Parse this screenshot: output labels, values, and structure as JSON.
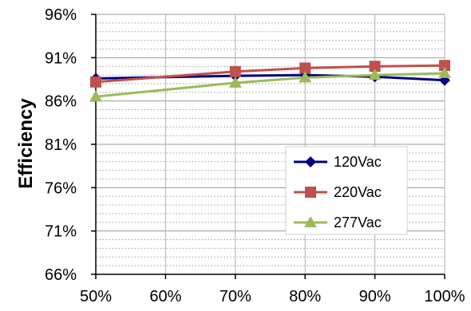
{
  "chart_data": {
    "type": "line",
    "title": "",
    "xlabel": "",
    "ylabel": "Efficiency",
    "x": [
      "50%",
      "60%",
      "70%",
      "80%",
      "90%",
      "100%"
    ],
    "y_ticks": [
      "96%",
      "91%",
      "86%",
      "81%",
      "76%",
      "71%",
      "66%"
    ],
    "ylim": [
      66,
      96
    ],
    "grid": true,
    "legend": "center-right",
    "series": [
      {
        "name": "120Vac",
        "color": "#000080",
        "marker": "diamond",
        "points": [
          [
            50,
            88.6
          ],
          [
            70,
            88.9
          ],
          [
            80,
            89.0
          ],
          [
            90,
            88.8
          ],
          [
            100,
            88.4
          ]
        ]
      },
      {
        "name": "220Vac",
        "color": "#c0504d",
        "marker": "square",
        "points": [
          [
            50,
            88.2
          ],
          [
            70,
            89.4
          ],
          [
            80,
            89.8
          ],
          [
            90,
            90.0
          ],
          [
            100,
            90.1
          ]
        ]
      },
      {
        "name": "277Vac",
        "color": "#9bbb59",
        "marker": "triangle",
        "points": [
          [
            50,
            86.5
          ],
          [
            70,
            88.1
          ],
          [
            80,
            88.7
          ],
          [
            90,
            89.0
          ],
          [
            100,
            89.2
          ]
        ]
      }
    ]
  }
}
